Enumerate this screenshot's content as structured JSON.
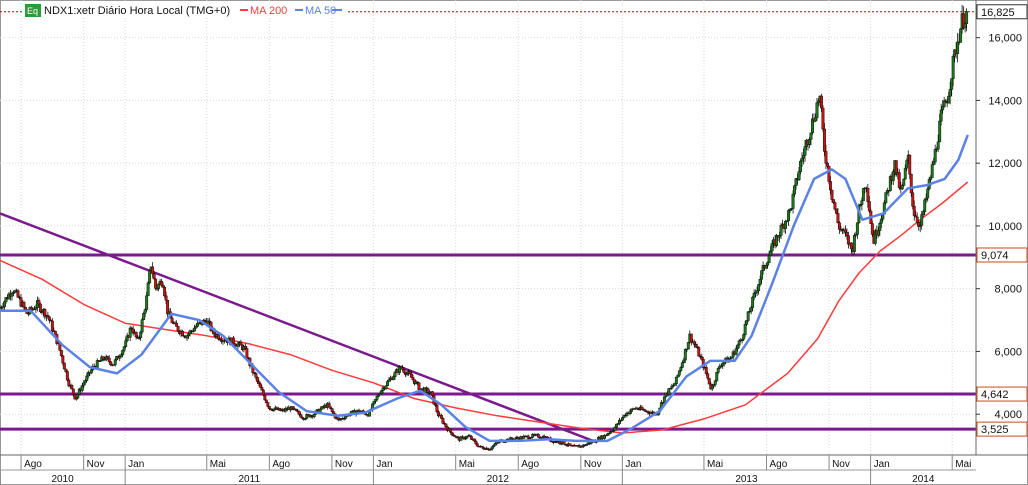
{
  "chart_data": {
    "type": "candlestick",
    "legend": {
      "symbol_badge": "Eq",
      "series_label": "NDX1:xetr Diário Hora Local (TMG+0)",
      "ma200_label": "MA 200",
      "ma50_label": "MA 50"
    },
    "colors": {
      "up": "#1a7a1a",
      "down": "#cc1111",
      "ma200": "#ff3b3b",
      "ma50": "#5b82e6",
      "trendline": "#7a1a8c",
      "grid": "#d8d8d8",
      "last_price_marker": "#cc0000"
    },
    "y_axis": {
      "range": [
        2700,
        17200
      ],
      "ticks": [
        4000,
        6000,
        8000,
        10000,
        12000,
        14000,
        16000
      ],
      "tick_labels": [
        "4,000",
        "6,000",
        "8,000",
        "10,000",
        "12,000",
        "14,000",
        "16,000"
      ]
    },
    "x_axis": {
      "range": [
        "2010-07-01",
        "2014-06-05"
      ],
      "month_ticks": [
        {
          "date": "2010-08-01",
          "label": "Ago"
        },
        {
          "date": "2010-11-01",
          "label": "Nov"
        },
        {
          "date": "2011-01-01",
          "label": "Jan"
        },
        {
          "date": "2011-05-01",
          "label": "Mai"
        },
        {
          "date": "2011-08-01",
          "label": "Ago"
        },
        {
          "date": "2011-11-01",
          "label": "Nov"
        },
        {
          "date": "2012-01-01",
          "label": "Jan"
        },
        {
          "date": "2012-05-01",
          "label": "Mai"
        },
        {
          "date": "2012-08-01",
          "label": "Ago"
        },
        {
          "date": "2012-11-01",
          "label": "Nov"
        },
        {
          "date": "2013-01-01",
          "label": "Jan"
        },
        {
          "date": "2013-05-01",
          "label": "Mai"
        },
        {
          "date": "2013-08-01",
          "label": "Ago"
        },
        {
          "date": "2013-11-01",
          "label": "Nov"
        },
        {
          "date": "2014-01-01",
          "label": "Jan"
        },
        {
          "date": "2014-05-01",
          "label": "Mai"
        }
      ],
      "year_labels": [
        {
          "label": "2010",
          "from": "2010-07-01",
          "to": "2011-01-01"
        },
        {
          "label": "2011",
          "from": "2011-01-01",
          "to": "2012-01-01"
        },
        {
          "label": "2012",
          "from": "2012-01-01",
          "to": "2013-01-01"
        },
        {
          "label": "2013",
          "from": "2013-01-01",
          "to": "2014-01-01"
        },
        {
          "label": "2014",
          "from": "2014-01-01",
          "to": "2014-06-05"
        }
      ]
    },
    "price_path": [
      [
        "2010-07-01",
        7400
      ],
      [
        "2010-07-20",
        8000
      ],
      [
        "2010-08-10",
        7200
      ],
      [
        "2010-08-25",
        7500
      ],
      [
        "2010-09-10",
        7100
      ],
      [
        "2010-09-25",
        6200
      ],
      [
        "2010-10-10",
        5000
      ],
      [
        "2010-10-20",
        4500
      ],
      [
        "2010-11-01",
        5000
      ],
      [
        "2010-11-15",
        5500
      ],
      [
        "2010-12-01",
        5800
      ],
      [
        "2010-12-15",
        5600
      ],
      [
        "2011-01-01",
        6200
      ],
      [
        "2011-01-10",
        6800
      ],
      [
        "2011-01-20",
        6300
      ],
      [
        "2011-02-01",
        7600
      ],
      [
        "2011-02-08",
        8800
      ],
      [
        "2011-02-15",
        8000
      ],
      [
        "2011-02-25",
        8300
      ],
      [
        "2011-03-05",
        7200
      ],
      [
        "2011-03-15",
        6800
      ],
      [
        "2011-04-01",
        6500
      ],
      [
        "2011-04-15",
        6800
      ],
      [
        "2011-05-01",
        7000
      ],
      [
        "2011-05-10",
        6600
      ],
      [
        "2011-05-25",
        6400
      ],
      [
        "2011-06-10",
        6300
      ],
      [
        "2011-06-25",
        6100
      ],
      [
        "2011-07-05",
        5500
      ],
      [
        "2011-07-15",
        5000
      ],
      [
        "2011-08-01",
        4200
      ],
      [
        "2011-08-20",
        4100
      ],
      [
        "2011-09-01",
        4200
      ],
      [
        "2011-09-20",
        3900
      ],
      [
        "2011-10-05",
        4000
      ],
      [
        "2011-10-25",
        4300
      ],
      [
        "2011-11-10",
        3800
      ],
      [
        "2011-11-25",
        4000
      ],
      [
        "2011-12-10",
        4100
      ],
      [
        "2011-12-25",
        4000
      ],
      [
        "2012-01-10",
        4700
      ],
      [
        "2012-01-25",
        5100
      ],
      [
        "2012-02-10",
        5500
      ],
      [
        "2012-02-25",
        5200
      ],
      [
        "2012-03-10",
        4800
      ],
      [
        "2012-03-25",
        4700
      ],
      [
        "2012-04-05",
        4000
      ],
      [
        "2012-04-20",
        3500
      ],
      [
        "2012-05-05",
        3200
      ],
      [
        "2012-05-20",
        3300
      ],
      [
        "2012-06-05",
        2950
      ],
      [
        "2012-06-20",
        2900
      ],
      [
        "2012-07-05",
        3150
      ],
      [
        "2012-07-20",
        3200
      ],
      [
        "2012-08-05",
        3250
      ],
      [
        "2012-08-20",
        3300
      ],
      [
        "2012-09-05",
        3300
      ],
      [
        "2012-09-20",
        3150
      ],
      [
        "2012-10-05",
        3100
      ],
      [
        "2012-10-20",
        2950
      ],
      [
        "2012-11-05",
        3000
      ],
      [
        "2012-11-20",
        3150
      ],
      [
        "2012-12-05",
        3300
      ],
      [
        "2012-12-20",
        3550
      ],
      [
        "2013-01-05",
        4000
      ],
      [
        "2013-01-20",
        4200
      ],
      [
        "2013-02-05",
        4100
      ],
      [
        "2013-02-20",
        4000
      ],
      [
        "2013-03-05",
        4600
      ],
      [
        "2013-03-20",
        5000
      ],
      [
        "2013-04-01",
        5800
      ],
      [
        "2013-04-10",
        6500
      ],
      [
        "2013-04-20",
        6100
      ],
      [
        "2013-05-01",
        5500
      ],
      [
        "2013-05-12",
        4800
      ],
      [
        "2013-05-25",
        5600
      ],
      [
        "2013-06-10",
        5800
      ],
      [
        "2013-06-25",
        6400
      ],
      [
        "2013-07-10",
        7500
      ],
      [
        "2013-07-25",
        8500
      ],
      [
        "2013-08-05",
        9100
      ],
      [
        "2013-08-20",
        9800
      ],
      [
        "2013-09-05",
        10500
      ],
      [
        "2013-09-20",
        12000
      ],
      [
        "2013-10-01",
        12800
      ],
      [
        "2013-10-10",
        13500
      ],
      [
        "2013-10-18",
        14200
      ],
      [
        "2013-10-25",
        12500
      ],
      [
        "2013-11-05",
        11000
      ],
      [
        "2013-11-15",
        10000
      ],
      [
        "2013-11-25",
        9700
      ],
      [
        "2013-12-05",
        9200
      ],
      [
        "2013-12-15",
        10500
      ],
      [
        "2013-12-25",
        11500
      ],
      [
        "2014-01-05",
        9500
      ],
      [
        "2014-01-15",
        10200
      ],
      [
        "2014-01-25",
        11000
      ],
      [
        "2014-02-05",
        12000
      ],
      [
        "2014-02-15",
        11000
      ],
      [
        "2014-02-25",
        12200
      ],
      [
        "2014-03-05",
        10500
      ],
      [
        "2014-03-15",
        10000
      ],
      [
        "2014-03-25",
        11000
      ],
      [
        "2014-04-05",
        12200
      ],
      [
        "2014-04-15",
        13500
      ],
      [
        "2014-04-25",
        14200
      ],
      [
        "2014-05-05",
        15500
      ],
      [
        "2014-05-15",
        16500
      ],
      [
        "2014-05-24",
        16825
      ]
    ],
    "ma50_path": [
      [
        "2010-07-01",
        7300
      ],
      [
        "2010-08-15",
        7300
      ],
      [
        "2010-10-01",
        6200
      ],
      [
        "2010-11-10",
        5500
      ],
      [
        "2010-12-20",
        5300
      ],
      [
        "2011-01-25",
        5900
      ],
      [
        "2011-03-10",
        7200
      ],
      [
        "2011-04-20",
        7000
      ],
      [
        "2011-05-25",
        6500
      ],
      [
        "2011-07-05",
        5600
      ],
      [
        "2011-08-15",
        4700
      ],
      [
        "2011-09-25",
        4100
      ],
      [
        "2011-11-10",
        3950
      ],
      [
        "2011-12-20",
        4050
      ],
      [
        "2012-02-05",
        4500
      ],
      [
        "2012-03-10",
        4750
      ],
      [
        "2012-04-10",
        4300
      ],
      [
        "2012-05-15",
        3600
      ],
      [
        "2012-06-20",
        3150
      ],
      [
        "2012-08-01",
        3150
      ],
      [
        "2012-09-15",
        3200
      ],
      [
        "2012-10-25",
        3150
      ],
      [
        "2012-12-10",
        3150
      ],
      [
        "2013-01-15",
        3550
      ],
      [
        "2013-02-25",
        4100
      ],
      [
        "2013-04-05",
        5200
      ],
      [
        "2013-05-10",
        5700
      ],
      [
        "2013-06-15",
        5700
      ],
      [
        "2013-07-10",
        6500
      ],
      [
        "2013-08-10",
        8200
      ],
      [
        "2013-09-10",
        10000
      ],
      [
        "2013-10-10",
        11500
      ],
      [
        "2013-11-05",
        11800
      ],
      [
        "2013-11-25",
        11500
      ],
      [
        "2013-12-20",
        10200
      ],
      [
        "2014-01-20",
        10400
      ],
      [
        "2014-02-25",
        11200
      ],
      [
        "2014-03-25",
        11300
      ],
      [
        "2014-04-20",
        11500
      ],
      [
        "2014-05-10",
        12100
      ],
      [
        "2014-05-24",
        12900
      ]
    ],
    "ma200_path": [
      [
        "2010-07-01",
        8900
      ],
      [
        "2010-09-01",
        8300
      ],
      [
        "2010-11-01",
        7500
      ],
      [
        "2011-01-01",
        6900
      ],
      [
        "2011-03-01",
        6700
      ],
      [
        "2011-05-01",
        6500
      ],
      [
        "2011-07-01",
        6250
      ],
      [
        "2011-09-01",
        5900
      ],
      [
        "2011-11-01",
        5400
      ],
      [
        "2012-01-01",
        5000
      ],
      [
        "2012-03-01",
        4500
      ],
      [
        "2012-05-01",
        4200
      ],
      [
        "2012-07-01",
        3950
      ],
      [
        "2012-09-01",
        3750
      ],
      [
        "2012-11-01",
        3550
      ],
      [
        "2013-01-01",
        3400
      ],
      [
        "2013-03-01",
        3500
      ],
      [
        "2013-05-01",
        3850
      ],
      [
        "2013-07-01",
        4300
      ],
      [
        "2013-09-01",
        5300
      ],
      [
        "2013-10-15",
        6400
      ],
      [
        "2013-11-15",
        7600
      ],
      [
        "2013-12-15",
        8500
      ],
      [
        "2014-01-15",
        9200
      ],
      [
        "2014-02-15",
        9700
      ],
      [
        "2014-03-15",
        10200
      ],
      [
        "2014-04-15",
        10700
      ],
      [
        "2014-05-24",
        11400
      ]
    ],
    "horizontal_levels": [
      {
        "value": 9074,
        "label": "9,074"
      },
      {
        "value": 4642,
        "label": "4,642"
      },
      {
        "value": 3525,
        "label": "3,525"
      }
    ],
    "last_price": {
      "value": 16825,
      "label": "16,825"
    },
    "trendline": {
      "from": [
        "2010-07-01",
        10400
      ],
      "to": [
        "2012-11-25",
        3100
      ]
    }
  }
}
